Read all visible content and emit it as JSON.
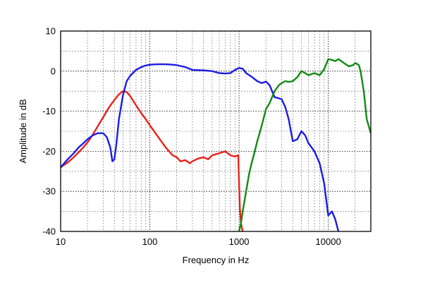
{
  "chart_data": {
    "type": "line",
    "title": "",
    "xlabel": "Frequency in Hz",
    "ylabel": "Amplitude in dB",
    "xscale": "log",
    "xlim": [
      10,
      30000
    ],
    "ylim": [
      -40,
      10
    ],
    "grid": true,
    "x_ticks": [
      10,
      100,
      1000,
      10000
    ],
    "x_tick_labels": [
      "10",
      "100",
      "1000",
      "10000"
    ],
    "y_ticks": [
      10,
      0,
      -10,
      -20,
      -30,
      -40
    ],
    "y_tick_labels": [
      "10",
      "0",
      "-10",
      "-20",
      "-30",
      "-40"
    ],
    "series": [
      {
        "name": "red",
        "color": "#e8221c",
        "x": [
          10,
          12,
          14,
          16,
          18,
          20,
          23,
          26,
          30,
          35,
          40,
          45,
          50,
          55,
          60,
          70,
          80,
          90,
          100,
          120,
          150,
          180,
          200,
          220,
          250,
          280,
          300,
          350,
          400,
          450,
          500,
          600,
          700,
          800,
          900,
          980,
          1000,
          1020,
          1050,
          1100
        ],
        "y": [
          -24,
          -22.8,
          -21.5,
          -20.2,
          -19,
          -17.8,
          -15.8,
          -13.8,
          -11.5,
          -9,
          -7.2,
          -5.8,
          -5,
          -5.2,
          -6.2,
          -8.5,
          -10.5,
          -12,
          -13.5,
          -16,
          -19,
          -21,
          -21.5,
          -22.5,
          -22.2,
          -23,
          -22.5,
          -21.8,
          -21.5,
          -22,
          -21,
          -20.5,
          -20,
          -21,
          -21.3,
          -21,
          -28,
          -34,
          -38,
          -40
        ]
      },
      {
        "name": "blue",
        "color": "#1c1ce6",
        "x": [
          10,
          12,
          14,
          16,
          18,
          20,
          23,
          26,
          30,
          33,
          36,
          38,
          40,
          42,
          45,
          50,
          55,
          60,
          70,
          80,
          90,
          100,
          120,
          150,
          180,
          200,
          250,
          300,
          400,
          500,
          600,
          700,
          800,
          900,
          1000,
          1100,
          1200,
          1400,
          1600,
          1800,
          2000,
          2200,
          2500,
          2800,
          3000,
          3300,
          3600,
          4000,
          4500,
          5000,
          5500,
          6000,
          7000,
          8000,
          9000,
          10000,
          11000,
          12000,
          13000
        ],
        "y": [
          -24,
          -22,
          -20.5,
          -19,
          -18,
          -17,
          -16,
          -15.5,
          -15.5,
          -16.5,
          -19,
          -22.5,
          -22,
          -18.5,
          -12,
          -6,
          -2.5,
          -1.2,
          0.3,
          1,
          1.4,
          1.6,
          1.7,
          1.7,
          1.6,
          1.5,
          1,
          0.3,
          0.2,
          0,
          -0.5,
          -0.6,
          -0.5,
          0.3,
          0.8,
          0.6,
          -0.5,
          -1.5,
          -2.5,
          -3,
          -2.6,
          -3.5,
          -6.5,
          -6.8,
          -7,
          -9,
          -12,
          -17.5,
          -17,
          -15,
          -16,
          -18,
          -20,
          -23,
          -28,
          -36,
          -35,
          -37,
          -40
        ]
      },
      {
        "name": "green",
        "color": "#138a13",
        "x": [
          1000,
          1050,
          1100,
          1200,
          1300,
          1400,
          1500,
          1600,
          1700,
          1800,
          2000,
          2200,
          2500,
          2800,
          3000,
          3300,
          3600,
          4000,
          4500,
          5000,
          5500,
          6000,
          7000,
          8000,
          9000,
          10000,
          11000,
          12000,
          13000,
          14000,
          15000,
          17000,
          19000,
          20000,
          21000,
          22000,
          23000,
          25000,
          27000,
          30000
        ],
        "y": [
          -40,
          -38,
          -35,
          -30,
          -25.5,
          -22.5,
          -20,
          -17.5,
          -15.5,
          -13.5,
          -9.5,
          -8,
          -5,
          -3.5,
          -3,
          -2.5,
          -2.7,
          -2.5,
          -1.5,
          0,
          -0.5,
          -1,
          -0.5,
          -1,
          0.5,
          3,
          2.8,
          2.5,
          3,
          2.5,
          2,
          1.2,
          1.5,
          2,
          1.8,
          1.5,
          0,
          -5,
          -12,
          -15.5
        ]
      }
    ]
  }
}
